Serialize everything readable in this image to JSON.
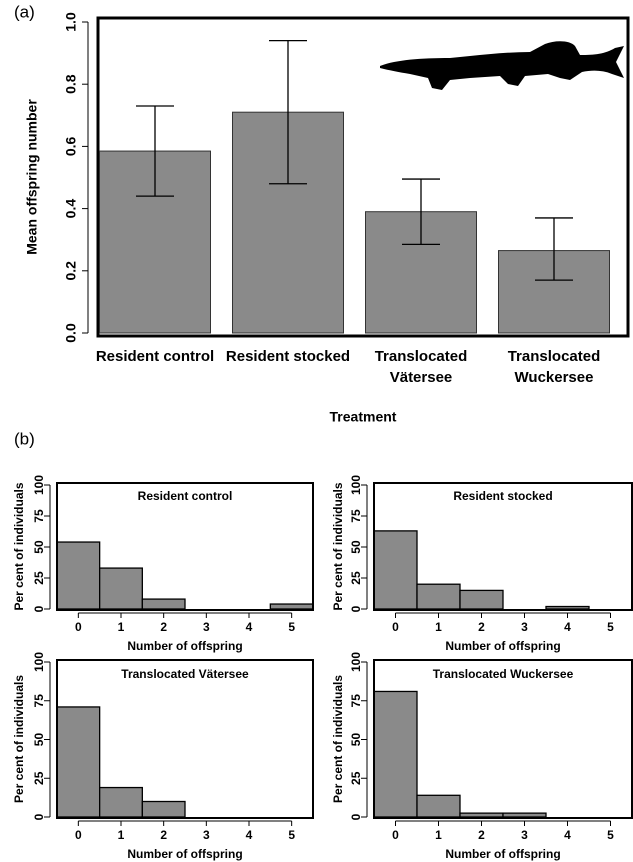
{
  "chart_data": [
    {
      "type": "bar",
      "panel_label": "(a)",
      "y_label": "Mean offspring number",
      "x_label": "Treatment",
      "categories": [
        "Resident control",
        "Resident stocked",
        "Translocated Vätersee",
        "Translocated Wuckersee"
      ],
      "values": [
        0.585,
        0.71,
        0.39,
        0.265
      ],
      "lower": [
        0.44,
        0.48,
        0.285,
        0.17
      ],
      "upper": [
        0.73,
        0.94,
        0.495,
        0.37
      ],
      "color": "#8a8a8a",
      "ylim": [
        0,
        1
      ],
      "yticks": [
        {
          "value": 0,
          "label": "0.0"
        },
        0.2,
        0.4,
        0.6,
        0.8,
        {
          "value": 1,
          "label": "1.0"
        }
      ]
    },
    {
      "type": "histogram",
      "panel_label": "(b)",
      "title": "Resident control",
      "y_label": "Per cent of individuals",
      "x_label": "Number of offspring",
      "categories": [
        "0",
        "1",
        "2",
        "3",
        "4",
        "5"
      ],
      "values": [
        54,
        33,
        8,
        0,
        0,
        4
      ],
      "color": "#8a8a8a",
      "ylim": [
        0,
        100
      ],
      "yticks": [
        0,
        25,
        50,
        75,
        100
      ]
    },
    {
      "type": "histogram",
      "title": "Resident stocked",
      "y_label": "Per cent of individuals",
      "x_label": "Number of offspring",
      "categories": [
        "0",
        "1",
        "2",
        "3",
        "4",
        "5"
      ],
      "values": [
        63,
        20,
        15,
        0,
        2,
        0
      ],
      "color": "#8a8a8a",
      "ylim": [
        0,
        100
      ],
      "yticks": [
        0,
        25,
        50,
        75,
        100
      ]
    },
    {
      "type": "histogram",
      "title": "Translocated Vätersee",
      "y_label": "Per cent of individuals",
      "x_label": "Number of offspring",
      "categories": [
        "0",
        "1",
        "2",
        "3",
        "4",
        "5"
      ],
      "values": [
        71,
        19,
        10,
        0,
        0,
        0
      ],
      "color": "#8a8a8a",
      "ylim": [
        0,
        100
      ],
      "yticks": [
        0,
        25,
        50,
        75,
        100
      ]
    },
    {
      "type": "histogram",
      "title": "Translocated Wuckersee",
      "y_label": "Per cent of individuals",
      "x_label": "Number of offspring",
      "categories": [
        "0",
        "1",
        "2",
        "3",
        "4",
        "5"
      ],
      "values": [
        81,
        14,
        2.5,
        2.5,
        0,
        0
      ],
      "color": "#8a8a8a",
      "ylim": [
        0,
        100
      ],
      "yticks": [
        0,
        25,
        50,
        75,
        100
      ]
    }
  ]
}
